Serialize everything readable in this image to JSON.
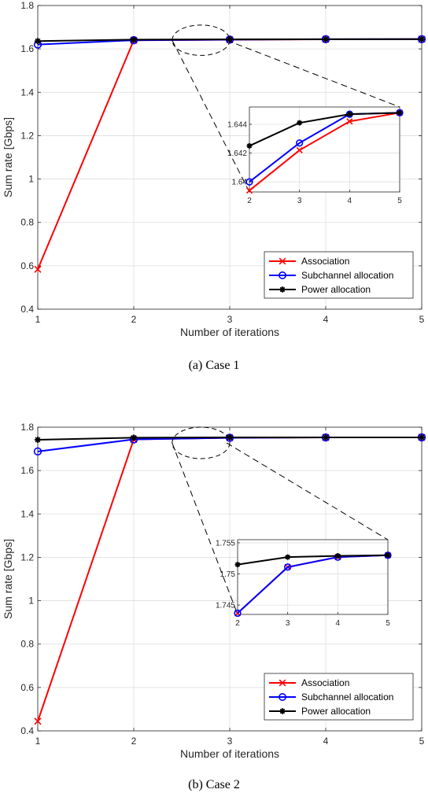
{
  "chart_data": [
    {
      "type": "line",
      "caption": "(a)  Case 1",
      "xlabel": "Number of iterations",
      "ylabel": "Sum rate [Gbps]",
      "xlim": [
        1,
        5
      ],
      "ylim": [
        0.4,
        1.8
      ],
      "x": [
        1,
        2,
        3,
        4,
        5
      ],
      "xticks": [
        "1",
        "2",
        "3",
        "4",
        "5"
      ],
      "yticks": [
        "0.4",
        "0.6",
        "0.8",
        "1",
        "1.2",
        "1.4",
        "1.6",
        "1.8"
      ],
      "grid": true,
      "legend_position": "bottom-right",
      "series": [
        {
          "name": "Association",
          "color": "#ff0000",
          "marker": "x",
          "values": [
            0.584,
            1.6394,
            1.6422,
            1.6442,
            1.6448
          ]
        },
        {
          "name": "Subchannel allocation",
          "color": "#0000ff",
          "marker": "o",
          "values": [
            1.62,
            1.64,
            1.6427,
            1.6447,
            1.6448
          ]
        },
        {
          "name": "Power allocation",
          "color": "#000000",
          "marker": "*",
          "values": [
            1.636,
            1.6425,
            1.6441,
            1.6447,
            1.6448
          ]
        }
      ],
      "inset": {
        "xlim": [
          2,
          5
        ],
        "ylim": [
          1.6393,
          1.6452
        ],
        "xticks": [
          "2",
          "3",
          "4",
          "5"
        ],
        "yticks": [
          "1.64",
          "1.642",
          "1.644"
        ],
        "ytick_values": [
          1.64,
          1.642,
          1.644
        ],
        "zoom_box": {
          "xlim": [
            2.4,
            3.0
          ],
          "ylim": [
            1.57,
            1.71
          ]
        }
      }
    },
    {
      "type": "line",
      "caption": "(b)  Case 2",
      "xlabel": "Number of iterations",
      "ylabel": "Sum rate [Gbps]",
      "xlim": [
        1,
        5
      ],
      "ylim": [
        0.4,
        1.8
      ],
      "x": [
        1,
        2,
        3,
        4,
        5
      ],
      "xticks": [
        "1",
        "2",
        "3",
        "4",
        "5"
      ],
      "yticks": [
        "0.4",
        "0.6",
        "0.8",
        "1",
        "1.2",
        "1.4",
        "1.6",
        "1.8"
      ],
      "grid": true,
      "legend_position": "bottom-right",
      "series": [
        {
          "name": "Association",
          "color": "#ff0000",
          "marker": "x",
          "values": [
            0.444,
            1.7437,
            1.7511,
            1.7527,
            1.753
          ]
        },
        {
          "name": "Subchannel allocation",
          "color": "#0000ff",
          "marker": "o",
          "values": [
            1.688,
            1.7437,
            1.7511,
            1.7527,
            1.753
          ]
        },
        {
          "name": "Power allocation",
          "color": "#000000",
          "marker": "*",
          "values": [
            1.742,
            1.7515,
            1.7527,
            1.7529,
            1.753
          ]
        }
      ],
      "inset": {
        "xlim": [
          2,
          5
        ],
        "ylim": [
          1.7435,
          1.7555
        ],
        "xticks": [
          "2",
          "3",
          "4",
          "5"
        ],
        "yticks": [
          "1.745",
          "1.75",
          "1.755"
        ],
        "ytick_values": [
          1.745,
          1.75,
          1.755
        ],
        "zoom_box": {
          "xlim": [
            2.4,
            3.0
          ],
          "ylim": [
            1.655,
            1.8
          ]
        }
      }
    }
  ]
}
